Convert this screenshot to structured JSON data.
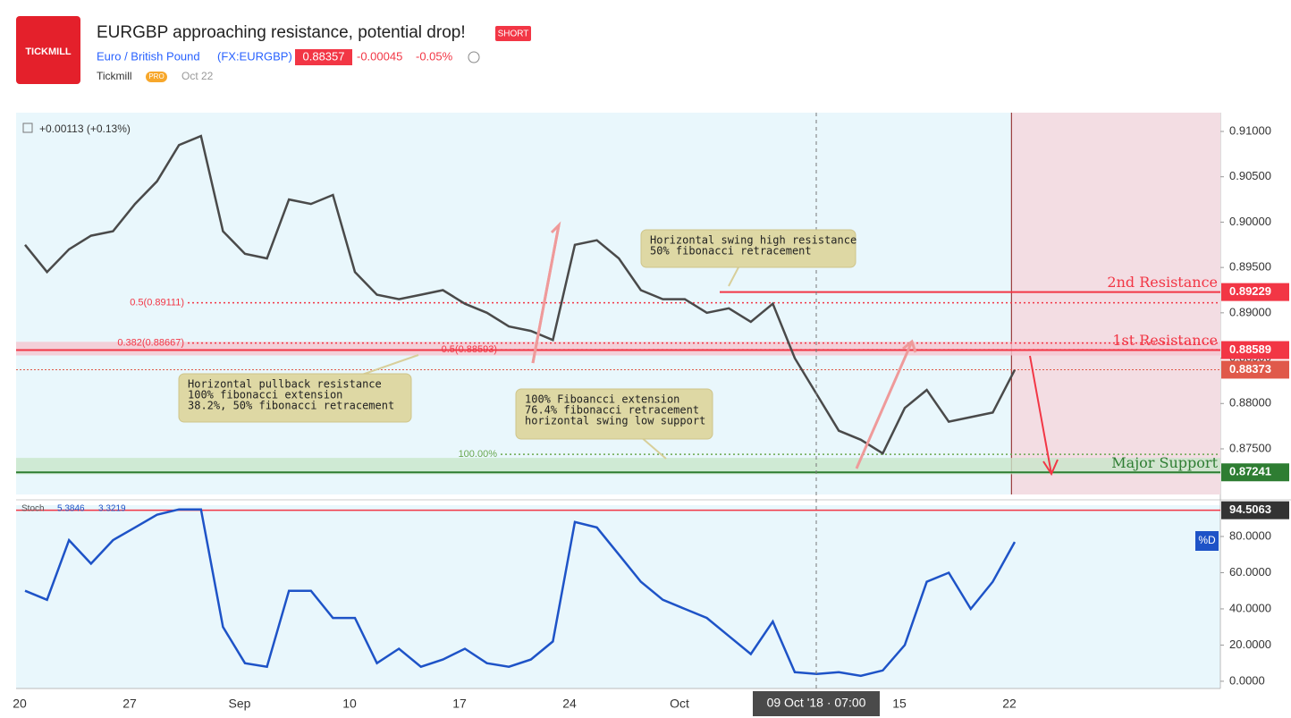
{
  "header": {
    "logo": "TICKMILL",
    "title": "EURGBP approaching resistance, potential drop!",
    "badge": "SHORT",
    "symbol_name": "Euro / British Pound",
    "symbol": "(FX:EURGBP)",
    "price": 0.88357,
    "change": -0.00045,
    "change_pct": "-0.05%",
    "author": "Tickmill",
    "author_badge": "PRO",
    "date": "Oct 22"
  },
  "chart_data": [
    {
      "type": "line",
      "title": "+0.00113 (+0.13%)",
      "color": "#4a4a4a",
      "categories": [
        "20",
        null,
        null,
        null,
        null,
        "27",
        null,
        null,
        null,
        null,
        "Sep",
        null,
        null,
        null,
        null,
        "10",
        null,
        null,
        null,
        null,
        "17",
        null,
        null,
        null,
        null,
        "24",
        null,
        null,
        null,
        null,
        "Oct",
        null,
        null,
        null,
        null,
        null,
        null,
        null,
        null,
        null,
        "15",
        null,
        null,
        null,
        null,
        "22",
        null,
        null,
        null,
        null,
        null,
        null,
        null,
        null,
        null
      ],
      "values": [
        0.8975,
        0.8945,
        0.897,
        0.8985,
        0.899,
        0.902,
        0.9045,
        0.9085,
        0.9095,
        0.899,
        0.8965,
        0.896,
        0.9025,
        0.902,
        0.903,
        0.8945,
        0.892,
        0.8915,
        0.892,
        0.8925,
        0.891,
        0.89,
        0.8885,
        0.888,
        0.887,
        0.8975,
        0.898,
        0.896,
        0.8925,
        0.8915,
        0.8915,
        0.89,
        0.8905,
        0.889,
        0.891,
        0.885,
        0.881,
        0.877,
        0.876,
        0.8745,
        0.8795,
        0.8815,
        0.878,
        0.8785,
        0.879,
        0.8837,
        null,
        null,
        null,
        null,
        null,
        null,
        null,
        null,
        null
      ],
      "ylim": [
        0.86997,
        0.91207
      ],
      "yticks": [
        {
          "value": 0.875,
          "label": "0.87500"
        },
        {
          "value": 0.88,
          "label": "0.88000"
        },
        {
          "value": 0.885,
          "label": "0.88500"
        },
        {
          "value": 0.89,
          "label": "0.89000"
        },
        {
          "value": 0.895,
          "label": "0.89500"
        },
        {
          "value": 0.9,
          "label": "0.90000"
        },
        {
          "value": 0.905,
          "label": "0.90500"
        },
        {
          "value": 0.91,
          "label": "0.91000"
        }
      ],
      "zones": [
        {
          "from": 0.8853,
          "to": 0.8868,
          "color": "#f5c6cf"
        },
        {
          "from": 0.8722,
          "to": 0.874,
          "color": "#c8e6c9"
        }
      ],
      "levels": [
        {
          "label": "2nd Resistance",
          "value": 0.89229,
          "color": "#f23645"
        },
        {
          "label": "1st Resistance",
          "value": 0.88589,
          "color": "#f23645"
        },
        {
          "value": 0.88373,
          "color": "#e0594a"
        },
        {
          "label": "Major Support",
          "value": 0.87241,
          "color": "#2e7d32"
        }
      ],
      "fib_levels": [
        {
          "label": "0.5(0.89111)",
          "value": 0.89111,
          "color": "#f23645"
        },
        {
          "label": "0.382(0.88667)",
          "value": 0.88667,
          "color": "#f23645"
        },
        {
          "label": "0.5(0.88593)",
          "value": 0.88593,
          "color": "#f23645"
        },
        {
          "label": "100.00%",
          "value": 0.8744,
          "color": "#6aa84f"
        }
      ],
      "notes": [
        [
          "Horizontal pullback resistance",
          "100% fibonacci extension",
          "38.2%, 50% fibonacci retracement"
        ],
        [
          "100% Fiboancci extension",
          "76.4% fibonacci retracement",
          "horizontal swing low support"
        ],
        [
          "Horizontal swing high resistance",
          "50% fibonacci retracement"
        ]
      ],
      "crosshair_label": "09 Oct '18 · 07:00"
    },
    {
      "type": "line",
      "title": "Stoch",
      "legend_values": [
        "5.3846",
        "3.3219"
      ],
      "series_label": "%D",
      "color": "#1e53c7",
      "values": [
        50,
        45,
        78,
        65,
        78,
        85,
        92,
        95,
        95,
        30,
        10,
        8,
        50,
        50,
        35,
        35,
        10,
        18,
        8,
        12,
        18,
        10,
        8,
        12,
        22,
        88,
        85,
        70,
        55,
        45,
        40,
        35,
        25,
        15,
        33,
        5,
        4,
        5,
        3,
        6,
        20,
        55,
        60,
        40,
        55,
        77,
        null,
        null,
        null,
        null,
        null,
        null,
        null,
        null,
        null
      ],
      "ylim": [
        -4,
        97.3
      ],
      "yticks": [
        {
          "value": 0,
          "label": "0.0000"
        },
        {
          "value": 20,
          "label": "20.0000"
        },
        {
          "value": 40,
          "label": "40.0000"
        },
        {
          "value": 60,
          "label": "60.0000"
        },
        {
          "value": 80,
          "label": "80.0000"
        }
      ],
      "level": {
        "value": 94.5063,
        "color": "#f23645"
      }
    }
  ]
}
